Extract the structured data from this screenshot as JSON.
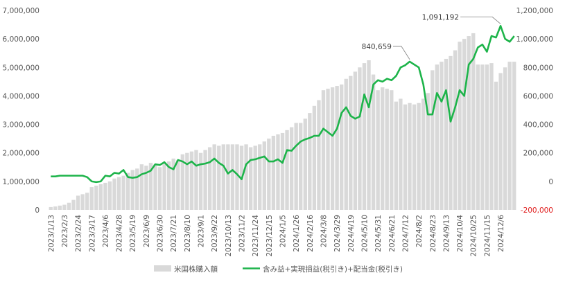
{
  "chart_data": {
    "type": "bar+line",
    "colors": {
      "bar": "#d9d9d9",
      "line": "#1db44a",
      "negative_tick": "#e02020",
      "text": "#595959"
    },
    "legend": {
      "placement": "bottom",
      "bar_label": "米国株購入額",
      "line_label": "含み益+実現損益(税引き)+配当金(税引き)"
    },
    "left_axis": {
      "ylim": [
        0,
        7000000
      ],
      "ticks": [
        0,
        1000000,
        2000000,
        3000000,
        4000000,
        5000000,
        6000000,
        7000000
      ],
      "tick_labels": [
        "0",
        "1,000,000",
        "2,000,000",
        "3,000,000",
        "4,000,000",
        "5,000,000",
        "6,000,000",
        "7,000,000"
      ]
    },
    "right_axis": {
      "ylim": [
        -200000,
        1200000
      ],
      "ticks": [
        -200000,
        0,
        200000,
        400000,
        600000,
        800000,
        1000000,
        1200000
      ],
      "tick_labels": [
        "-200,000",
        "0",
        "200,000",
        "400,000",
        "600,000",
        "800,000",
        "1,000,000",
        "1,200,000"
      ]
    },
    "x_tick_labels": [
      "2023/1/13",
      "2023/2/3",
      "2023/2/24",
      "2023/3/17",
      "2023/4/6",
      "2023/4/28",
      "2023/5/19",
      "2023/6/9",
      "2023/6/30",
      "2023/7/21",
      "2023/8/10",
      "2023/9/1",
      "2023/9/22",
      "2023/10/13",
      "2023/11/2",
      "2023/11/24",
      "2023/12/15",
      "2024/1/5",
      "2024/1/26",
      "2024/2/16",
      "2024/3/8",
      "2024/3/29",
      "2024/4/19",
      "2024/5/10",
      "2024/5/31",
      "2024/6/21",
      "2024/7/12",
      "2024/8/2",
      "2024/8/23",
      "2024/9/13",
      "2024/10/4",
      "2024/10/25",
      "2024/11/15",
      "2024/12/6"
    ],
    "labels_every": 3,
    "bar_values": [
      100000,
      120000,
      150000,
      180000,
      250000,
      350000,
      500000,
      550000,
      600000,
      800000,
      850000,
      900000,
      950000,
      1000000,
      1100000,
      1150000,
      1200000,
      1300000,
      1400000,
      1450000,
      1600000,
      1550000,
      1650000,
      1600000,
      1500000,
      1650000,
      1700000,
      1800000,
      1750000,
      1950000,
      2000000,
      2050000,
      2100000,
      2000000,
      2100000,
      2200000,
      2300000,
      2250000,
      2300000,
      2300000,
      2300000,
      2300000,
      2250000,
      2300000,
      2200000,
      2250000,
      2300000,
      2400000,
      2500000,
      2600000,
      2650000,
      2700000,
      2800000,
      2900000,
      3050000,
      3050000,
      3200000,
      3400000,
      3650000,
      3850000,
      4200000,
      4250000,
      4300000,
      4350000,
      4400000,
      4600000,
      4700000,
      4850000,
      5000000,
      5150000,
      5250000,
      4750000,
      4200000,
      4300000,
      4250000,
      4200000,
      3800000,
      3900000,
      3700000,
      3750000,
      3700000,
      3750000,
      3900000,
      4100000,
      4900000,
      5100000,
      5200000,
      5300000,
      5400000,
      5600000,
      5900000,
      6000000,
      6100000,
      6200000,
      5100000,
      5100000,
      5100000,
      5150000,
      4500000,
      4800000,
      5000000,
      5200000,
      5200000
    ],
    "line_values": [
      35000,
      35000,
      40000,
      40000,
      40000,
      40000,
      40000,
      40000,
      30000,
      0,
      -5000,
      0,
      40000,
      35000,
      60000,
      55000,
      80000,
      30000,
      25000,
      30000,
      50000,
      60000,
      75000,
      120000,
      115000,
      135000,
      100000,
      85000,
      150000,
      140000,
      120000,
      140000,
      110000,
      120000,
      125000,
      135000,
      160000,
      130000,
      110000,
      55000,
      80000,
      50000,
      15000,
      120000,
      150000,
      155000,
      165000,
      175000,
      140000,
      140000,
      155000,
      130000,
      220000,
      215000,
      250000,
      280000,
      295000,
      305000,
      320000,
      320000,
      370000,
      345000,
      320000,
      370000,
      480000,
      520000,
      460000,
      440000,
      455000,
      610000,
      520000,
      680000,
      710000,
      700000,
      720000,
      710000,
      740000,
      800000,
      815000,
      840659,
      820000,
      800000,
      680000,
      470000,
      470000,
      620000,
      560000,
      640000,
      420000,
      520000,
      640000,
      600000,
      820000,
      860000,
      940000,
      960000,
      910000,
      1020000,
      1010000,
      1091192,
      1000000,
      980000,
      1020000
    ],
    "annotations": [
      {
        "text": "840,659",
        "index": 79,
        "value": 840659
      },
      {
        "text": "1,091,192",
        "index": 99,
        "value": 1091192
      }
    ]
  }
}
